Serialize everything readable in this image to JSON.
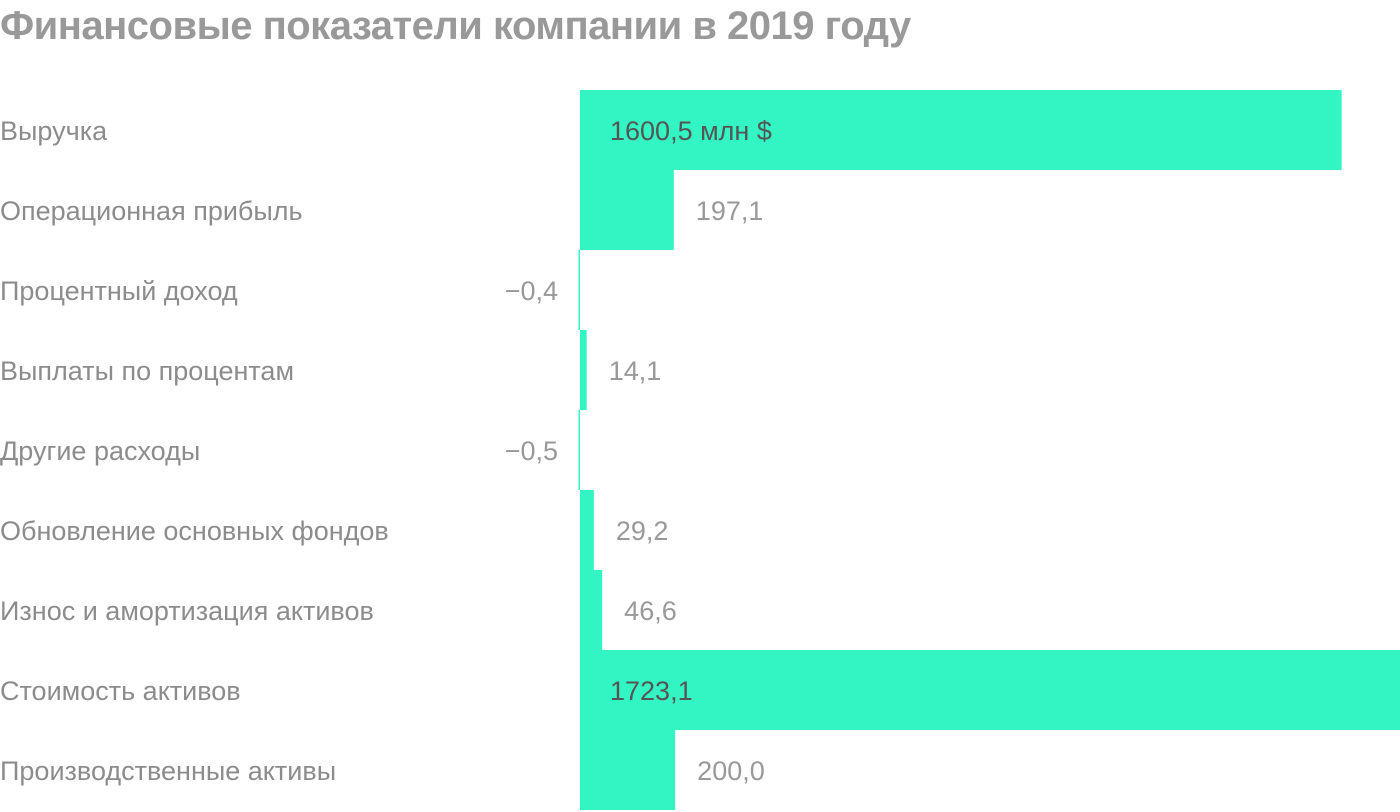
{
  "chart_data": {
    "type": "bar",
    "orientation": "horizontal",
    "title": "Финансовые показатели компании в 2019 году",
    "xlabel": "",
    "ylabel": "",
    "unit": "млн $",
    "grid": false,
    "legend": "none",
    "bar_color": "#33f5c3",
    "xlim": [
      0,
      1723.1
    ],
    "categories": [
      "Выручка",
      "Операционная прибыль",
      "Процентный доход",
      "Выплаты по процентам",
      "Другие расходы",
      "Обновление основных фондов",
      "Износ и амортизация активов",
      "Стоимость активов",
      "Производственные активы"
    ],
    "values": [
      1600.5,
      197.1,
      -0.4,
      14.1,
      -0.5,
      29.2,
      46.6,
      1723.1,
      200.0
    ],
    "value_labels": [
      "1600,5 млн $",
      "197,1",
      "−0,4",
      "14,1",
      "−0,5",
      "29,2",
      "46,6",
      "1723,1",
      "200,0"
    ]
  }
}
